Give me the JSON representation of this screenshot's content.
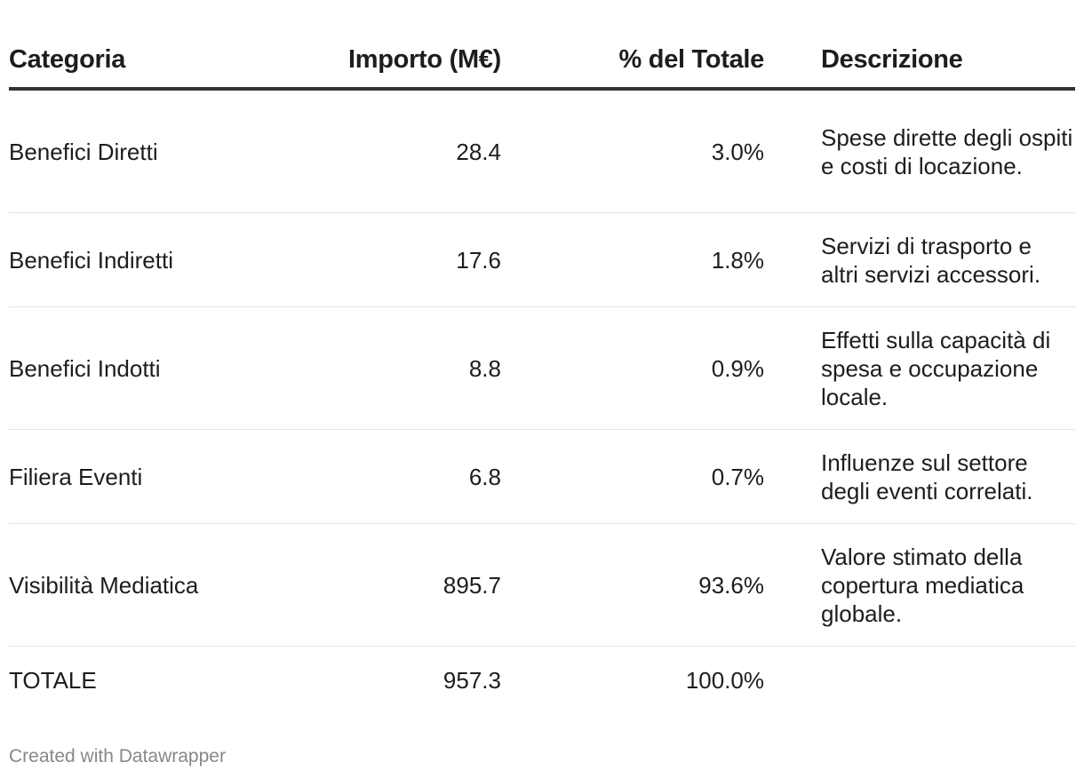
{
  "chart_data": {
    "type": "table",
    "columns": [
      "Categoria",
      "Importo (M€)",
      "% del Totale",
      "Descrizione"
    ],
    "rows": [
      {
        "categoria": "Benefici Diretti",
        "importo": "28.4",
        "percentuale": "3.0%",
        "descrizione": "Spese dirette degli ospiti e costi di locazione."
      },
      {
        "categoria": "Benefici Indiretti",
        "importo": "17.6",
        "percentuale": "1.8%",
        "descrizione": "Servizi di trasporto e altri servizi accessori."
      },
      {
        "categoria": "Benefici Indotti",
        "importo": "8.8",
        "percentuale": "0.9%",
        "descrizione": "Effetti sulla capacità di spesa e occupazione locale."
      },
      {
        "categoria": "Filiera Eventi",
        "importo": "6.8",
        "percentuale": "0.7%",
        "descrizione": "Influenze sul settore degli eventi correlati."
      },
      {
        "categoria": "Visibilità Mediatica",
        "importo": "895.7",
        "percentuale": "93.6%",
        "descrizione": "Valore stimato della copertura mediatica globale."
      },
      {
        "categoria": "TOTALE",
        "importo": "957.3",
        "percentuale": "100.0%",
        "descrizione": ""
      }
    ]
  },
  "footer": {
    "credit": "Created with Datawrapper"
  },
  "colors": {
    "text": "#1d1d1d",
    "header_rule": "#333333",
    "row_rule": "#e3e3e3",
    "footer_text": "#888888"
  }
}
